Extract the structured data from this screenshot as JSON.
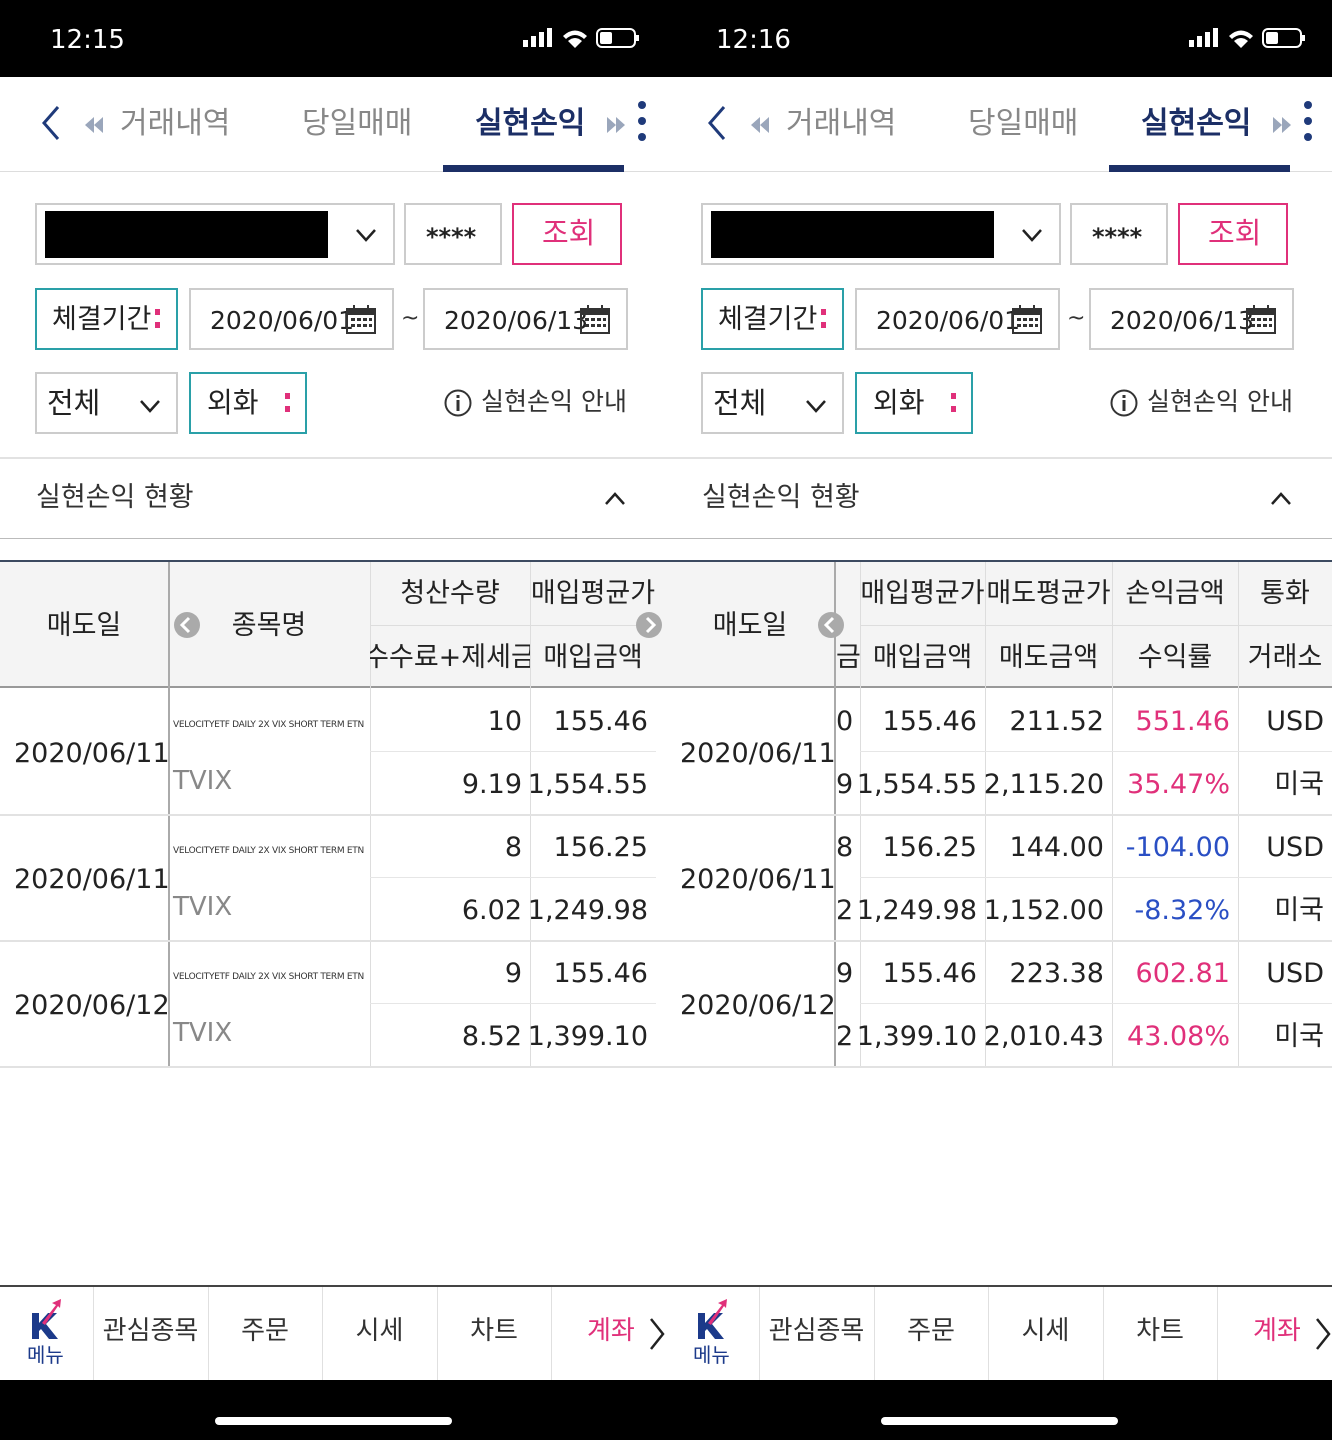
{
  "screens": [
    {
      "status_time": "12:15",
      "nav": {
        "tabs": [
          "거래내역",
          "당일매매",
          "실현손익"
        ]
      },
      "form": {
        "password": "****",
        "search_button": "조회",
        "period_label": "체결기간",
        "start_date": "2020/06/01",
        "separator": "~",
        "end_date": "2020/06/13",
        "filter": "전체",
        "currency": "외화",
        "info": "실현손익 안내"
      },
      "section_title": "실현손익 현황",
      "table": {
        "header": [
          [
            "매도일"
          ],
          [
            "종목명"
          ],
          [
            "청산수량",
            "수수료+제세금"
          ],
          [
            "매입평균가",
            "매입금액"
          ]
        ],
        "rows": [
          {
            "date": "2020/06/11",
            "name": "VELOCITYETF DAILY 2X VIX SHORT TERM ETN",
            "ticker": "TVIX",
            "cells": [
              [
                "10",
                "9.19"
              ],
              [
                "155.46",
                "1,554.55"
              ]
            ]
          },
          {
            "date": "2020/06/11",
            "name": "VELOCITYETF DAILY 2X VIX SHORT TERM ETN",
            "ticker": "TVIX",
            "cells": [
              [
                "8",
                "6.02"
              ],
              [
                "156.25",
                "1,249.98"
              ]
            ]
          },
          {
            "date": "2020/06/12",
            "name": "VELOCITYETF DAILY 2X VIX SHORT TERM ETN",
            "ticker": "TVIX",
            "cells": [
              [
                "9",
                "8.52"
              ],
              [
                "155.46",
                "1,399.10"
              ]
            ]
          }
        ]
      },
      "bottom_nav": [
        "메뉴",
        "관심종목",
        "주문",
        "시세",
        "차트",
        "계좌"
      ]
    },
    {
      "status_time": "12:16",
      "nav": {
        "tabs": [
          "거래내역",
          "당일매매",
          "실현손익"
        ]
      },
      "form": {
        "password": "****",
        "search_button": "조회",
        "period_label": "체결기간",
        "start_date": "2020/06/01",
        "separator": "~",
        "end_date": "2020/06/13",
        "filter": "전체",
        "currency": "외화",
        "info": "실현손익 안내"
      },
      "section_title": "실현손익 현황",
      "table": {
        "header": [
          [
            "매도일"
          ],
          [
            null,
            "금"
          ],
          [
            "매입평균가",
            "매입금액"
          ],
          [
            "매도평균가",
            "매도금액"
          ],
          [
            "손익금액",
            "수익률"
          ],
          [
            "통화",
            "거래소"
          ]
        ],
        "rows": [
          {
            "date": "2020/06/11",
            "highlight_color": "#e0307a",
            "cells": [
              [
                "0",
                "9"
              ],
              [
                "155.46",
                "1,554.55"
              ],
              [
                "211.52",
                "2,115.20"
              ],
              [
                "551.46",
                "35.47%"
              ],
              [
                "USD",
                "미국"
              ]
            ]
          },
          {
            "date": "2020/06/11",
            "highlight_color": "#2a4fc4",
            "cells": [
              [
                "8",
                "2"
              ],
              [
                "156.25",
                "1,249.98"
              ],
              [
                "144.00",
                "1,152.00"
              ],
              [
                "-104.00",
                "-8.32%"
              ],
              [
                "USD",
                "미국"
              ]
            ]
          },
          {
            "date": "2020/06/12",
            "highlight_color": "#e0307a",
            "cells": [
              [
                "9",
                "2"
              ],
              [
                "155.46",
                "1,399.10"
              ],
              [
                "223.38",
                "2,010.43"
              ],
              [
                "602.81",
                "43.08%"
              ],
              [
                "USD",
                "미국"
              ]
            ]
          }
        ]
      },
      "bottom_nav": [
        "메뉴",
        "관심종목",
        "주문",
        "시세",
        "차트",
        "계좌"
      ]
    }
  ]
}
